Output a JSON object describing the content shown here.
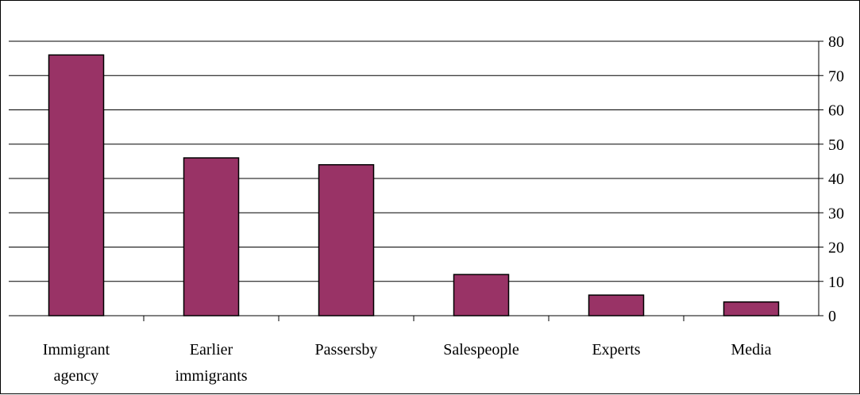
{
  "chart_data": {
    "type": "bar",
    "categories": [
      [
        "Immigrant",
        "agency"
      ],
      [
        "Earlier",
        "immigrants"
      ],
      [
        "Passersby"
      ],
      [
        "Salespeople"
      ],
      [
        "Experts"
      ],
      [
        "Media"
      ]
    ],
    "values": [
      76,
      46,
      44,
      12,
      6,
      4
    ],
    "ylim": [
      0,
      80
    ],
    "yticks": [
      0,
      10,
      20,
      30,
      40,
      50,
      60,
      70,
      80
    ],
    "y_axis_side": "right",
    "grid": true,
    "legend": "none",
    "bar_color": "#993366"
  }
}
